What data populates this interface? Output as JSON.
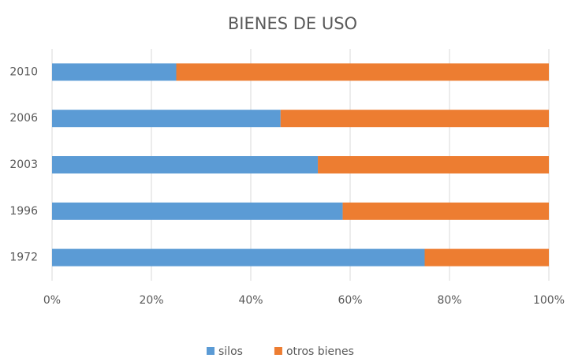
{
  "chart_data": {
    "type": "bar",
    "orientation": "horizontal",
    "stacked": true,
    "title": "BIENES DE USO",
    "categories": [
      "2010",
      "2006",
      "2003",
      "1996",
      "1972"
    ],
    "series": [
      {
        "name": "silos",
        "color": "#5b9bd5",
        "values": [
          25,
          46,
          53.5,
          58.5,
          75
        ]
      },
      {
        "name": "otros bienes",
        "color": "#ed7d31",
        "values": [
          75,
          54,
          46.5,
          41.5,
          25
        ]
      }
    ],
    "xlim": [
      0,
      100
    ],
    "xticks": [
      {
        "value": 0,
        "label": "0%"
      },
      {
        "value": 20,
        "label": "20%"
      },
      {
        "value": 40,
        "label": "40%"
      },
      {
        "value": 60,
        "label": "60%"
      },
      {
        "value": 80,
        "label": "80%"
      },
      {
        "value": 100,
        "label": "100%"
      }
    ],
    "grid": true,
    "legend": "bottom"
  }
}
